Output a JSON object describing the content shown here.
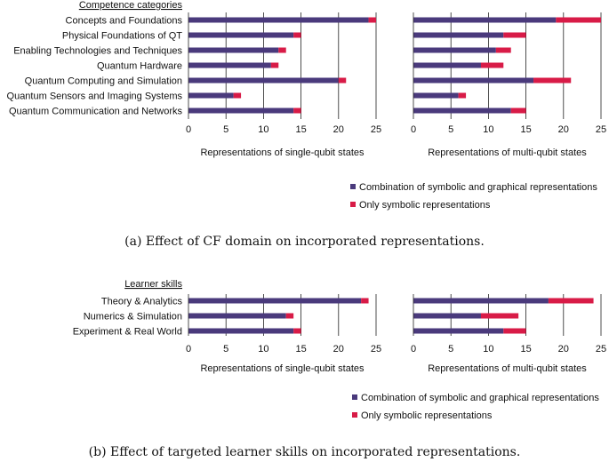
{
  "colors": {
    "combined": "#4a3a7c",
    "symbolic": "#d81b47",
    "gridline": "#222222",
    "text": "#111111"
  },
  "chart_data": [
    {
      "type": "bar",
      "orientation": "horizontal",
      "stacked": true,
      "panel": "a-left",
      "category_header": "Competence categories",
      "categories": [
        "Concepts and Foundations",
        "Physical Foundations of QT",
        "Enabling Technologies and Techniques",
        "Quantum Hardware",
        "Quantum Computing and Simulation",
        "Quantum Sensors and Imaging Systems",
        "Quantum Communication and Networks"
      ],
      "series": [
        {
          "name": "Combination of symbolic and graphical representations",
          "values": [
            24,
            14,
            12,
            11,
            20,
            6,
            14
          ]
        },
        {
          "name": "Only symbolic representations",
          "values": [
            1,
            1,
            1,
            1,
            1,
            1,
            1
          ]
        }
      ],
      "xlabel": "Representations of single-qubit states",
      "xlim": [
        0,
        25
      ],
      "xticks": [
        0,
        5,
        10,
        15,
        20,
        25
      ],
      "grid": "vertical"
    },
    {
      "type": "bar",
      "orientation": "horizontal",
      "stacked": true,
      "panel": "a-right",
      "categories": [
        "Concepts and Foundations",
        "Physical Foundations of QT",
        "Enabling Technologies and Techniques",
        "Quantum Hardware",
        "Quantum Computing and Simulation",
        "Quantum Sensors and Imaging Systems",
        "Quantum Communication and Networks"
      ],
      "series": [
        {
          "name": "Combination of symbolic and graphical representations",
          "values": [
            19,
            12,
            11,
            9,
            16,
            6,
            13
          ]
        },
        {
          "name": "Only symbolic representations",
          "values": [
            6,
            3,
            2,
            3,
            5,
            1,
            2
          ]
        }
      ],
      "xlabel": "Representations of multi-qubit states",
      "xlim": [
        0,
        25
      ],
      "xticks": [
        0,
        5,
        10,
        15,
        20,
        25
      ],
      "grid": "vertical"
    },
    {
      "type": "bar",
      "orientation": "horizontal",
      "stacked": true,
      "panel": "b-left",
      "category_header": "Learner skills",
      "categories": [
        "Theory & Analytics",
        "Numerics & Simulation",
        "Experiment & Real World"
      ],
      "series": [
        {
          "name": "Combination of symbolic and graphical representations",
          "values": [
            23,
            13,
            14
          ]
        },
        {
          "name": "Only symbolic representations",
          "values": [
            1,
            1,
            1
          ]
        }
      ],
      "xlabel": "Representations of single-qubit states",
      "xlim": [
        0,
        25
      ],
      "xticks": [
        0,
        5,
        10,
        15,
        20,
        25
      ],
      "grid": "vertical"
    },
    {
      "type": "bar",
      "orientation": "horizontal",
      "stacked": true,
      "panel": "b-right",
      "categories": [
        "Theory & Analytics",
        "Numerics & Simulation",
        "Experiment & Real World"
      ],
      "series": [
        {
          "name": "Combination of symbolic and graphical representations",
          "values": [
            18,
            9,
            12
          ]
        },
        {
          "name": "Only symbolic representations",
          "values": [
            6,
            5,
            3
          ]
        }
      ],
      "xlabel": "Representations of multi-qubit states",
      "xlim": [
        0,
        25
      ],
      "xticks": [
        0,
        5,
        10,
        15,
        20,
        25
      ],
      "grid": "vertical"
    }
  ],
  "legend_a": [
    "Combination of symbolic and graphical representations",
    "Only symbolic representations"
  ],
  "legend_b": [
    "Combination of symbolic and graphical representations",
    "Only symbolic representations"
  ],
  "captions": {
    "a": "(a) Effect of CF domain on incorporated representations.",
    "b": "(b) Effect of targeted learner skills on incorporated representations."
  }
}
